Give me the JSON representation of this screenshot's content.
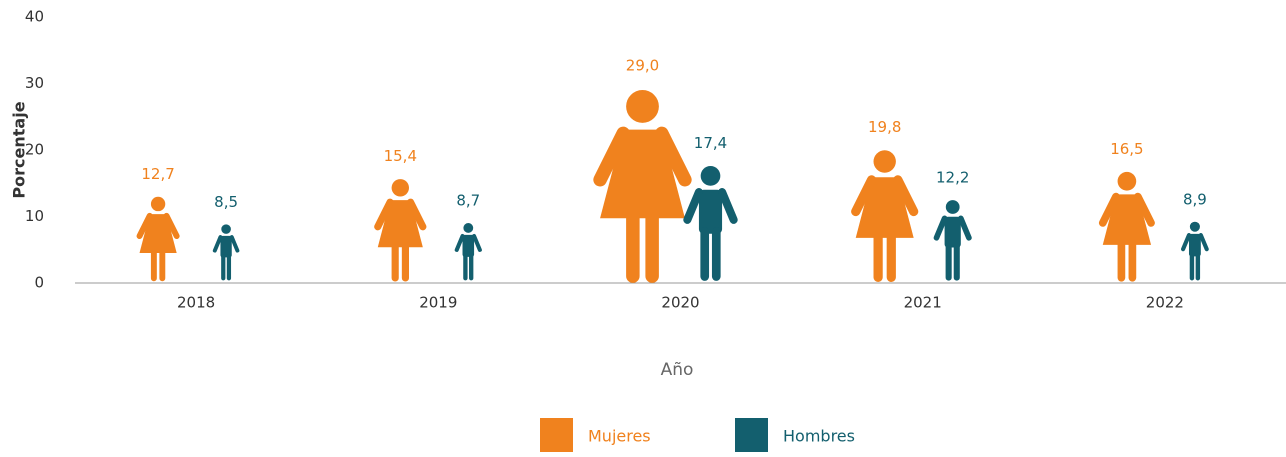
{
  "chart_data": {
    "type": "pictograph",
    "x_label": "Año",
    "y_label": "Porcentaje",
    "categories": [
      "2018",
      "2019",
      "2020",
      "2021",
      "2022"
    ],
    "series": [
      {
        "name": "Mujeres",
        "color": "#f0821e",
        "values": [
          12.7,
          15.4,
          29.0,
          19.8,
          16.5
        ],
        "value_labels": [
          "12,7",
          "15,4",
          "29,0",
          "19,8",
          "16,5"
        ]
      },
      {
        "name": "Hombres",
        "color": "#135f6e",
        "values": [
          8.5,
          8.7,
          17.4,
          12.2,
          8.9
        ],
        "value_labels": [
          "8,5",
          "8,7",
          "17,4",
          "12,2",
          "8,9"
        ]
      }
    ],
    "ylim": [
      0,
      40
    ],
    "yticks": [
      0,
      10,
      20,
      30,
      40
    ],
    "grid": false,
    "legend": "bottom"
  }
}
